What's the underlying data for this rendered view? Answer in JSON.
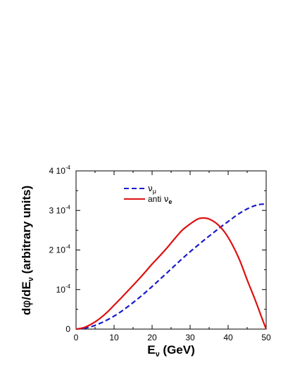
{
  "chart_data": {
    "type": "line",
    "xlabel": {
      "main": "E",
      "sub": "ν",
      "unit": " (GeV)"
    },
    "ylabel": {
      "pre": "d",
      "phi": "φ",
      "mid": "/dE",
      "sub": "ν",
      "post": " (arbitrary units)"
    },
    "xlim": [
      0,
      50
    ],
    "ylim": [
      0,
      0.0004
    ],
    "x_ticks": [
      {
        "value": 0,
        "label": "0"
      },
      {
        "value": 10,
        "label": "10"
      },
      {
        "value": 20,
        "label": "20"
      },
      {
        "value": 30,
        "label": "30"
      },
      {
        "value": 40,
        "label": "40"
      },
      {
        "value": 50,
        "label": "50"
      }
    ],
    "y_ticks": [
      {
        "value": 0,
        "mant": "0",
        "exp": ""
      },
      {
        "value": 0.0001,
        "mant": "10",
        "exp": "-4"
      },
      {
        "value": 0.0002,
        "mant": "2 10",
        "exp": "-4"
      },
      {
        "value": 0.0003,
        "mant": "3 10",
        "exp": "-4"
      },
      {
        "value": 0.0004,
        "mant": "4 10",
        "exp": "-4"
      }
    ],
    "grid": false,
    "legend_position": "upper-left inside",
    "series": [
      {
        "id": "numu",
        "legend_main": "ν",
        "legend_sub": "μ",
        "color": "#1a1acc",
        "dash": "7,4",
        "x": [
          0,
          2,
          4,
          6,
          8,
          10,
          12,
          14,
          16,
          18,
          20,
          22,
          24,
          26,
          28,
          30,
          32,
          34,
          36,
          38,
          40,
          42,
          44,
          46,
          48,
          50
        ],
        "y": [
          0,
          1.8e-06,
          6.2e-06,
          1.33e-05,
          2.22e-05,
          3.29e-05,
          4.53e-05,
          5.96e-05,
          7.47e-05,
          9.07e-05,
          0.0001076,
          0.0001253,
          0.0001431,
          0.0001609,
          0.0001787,
          0.0001956,
          0.0002116,
          0.0002276,
          0.0002427,
          0.0002578,
          0.000272,
          0.0002862,
          0.0002987,
          0.0003084,
          0.0003147,
          0.0003164
        ]
      },
      {
        "id": "antinue",
        "legend_main": "anti ",
        "legend_nu": "ν",
        "legend_sub": "e",
        "color": "#dd1111",
        "dash": "",
        "x": [
          0,
          2,
          4,
          6,
          8,
          10,
          12,
          14,
          16,
          18,
          20,
          22,
          24,
          26,
          28,
          30,
          32,
          33.5,
          35,
          37,
          39,
          41,
          43,
          45,
          47,
          49,
          50
        ],
        "y": [
          0,
          3.6e-06,
          1.24e-05,
          2.49e-05,
          4.09e-05,
          6.04e-05,
          8e-05,
          0.0001004,
          0.0001209,
          0.0001422,
          0.0001644,
          0.0001849,
          0.0002062,
          0.0002293,
          0.0002507,
          0.0002658,
          0.0002782,
          0.0002809,
          0.0002782,
          0.0002667,
          0.0002462,
          0.0002151,
          0.0001751,
          0.0001244,
          7.64e-05,
          2.49e-05,
          0
        ]
      }
    ]
  }
}
